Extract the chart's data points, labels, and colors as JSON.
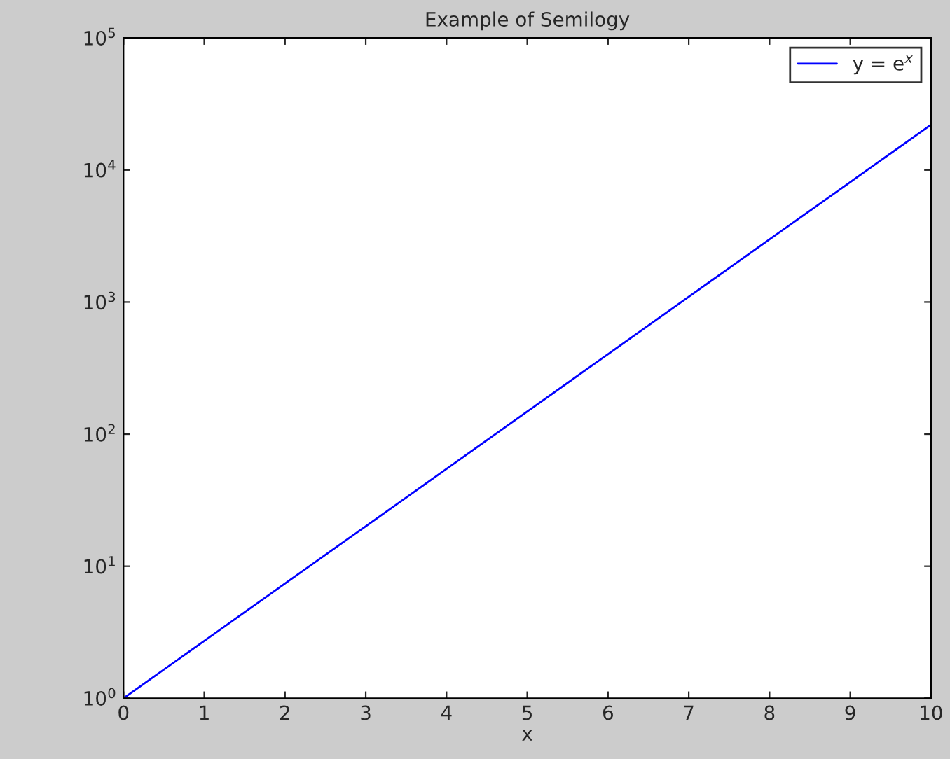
{
  "chart_data": {
    "type": "line",
    "title": "Example of Semilogy",
    "xlabel": "x",
    "x": [
      0,
      1,
      2,
      3,
      4,
      5,
      6,
      7,
      8,
      9,
      10
    ],
    "series": [
      {
        "name": "y = e$^{x}$",
        "color": "#0000ff",
        "values": [
          1,
          2.718,
          7.389,
          20.09,
          54.6,
          148.4,
          403.4,
          1097,
          2981,
          8103,
          22026
        ]
      }
    ],
    "log": "y",
    "xlim": [
      0,
      10
    ],
    "xticks": [
      0,
      1,
      2,
      3,
      4,
      5,
      6,
      7,
      8,
      9,
      10
    ],
    "ylim": [
      1,
      100000
    ],
    "yticks": [
      {
        "value": 1,
        "label": "10$^{0}$"
      },
      {
        "value": 10,
        "label": "10$^{1}$"
      },
      {
        "value": 100,
        "label": "10$^{2}$"
      },
      {
        "value": 1000,
        "label": "10$^{3}$"
      },
      {
        "value": 10000,
        "label": "10$^{4}$"
      },
      {
        "value": 100000,
        "label": "10$^{5}$"
      }
    ],
    "grid": false,
    "legend": "top right",
    "marker": "none",
    "line_style": "solid"
  }
}
